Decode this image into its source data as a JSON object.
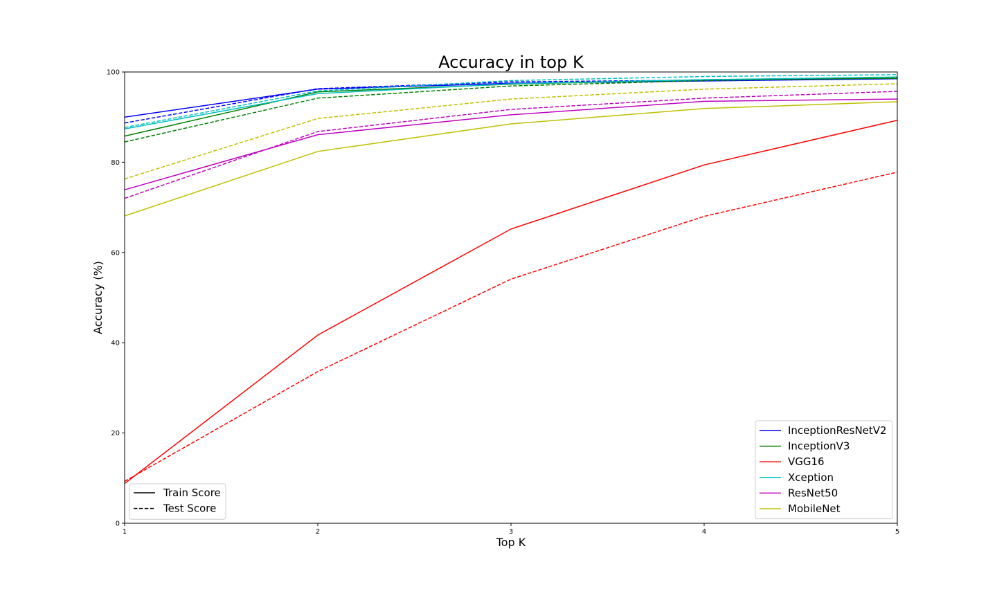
{
  "chart_data": {
    "type": "line",
    "title": "Accuracy in top K",
    "xlabel": "Top K",
    "ylabel": "Accuracy (%)",
    "x": [
      1,
      2,
      3,
      4,
      5
    ],
    "xlim": [
      1,
      5
    ],
    "ylim": [
      0,
      100
    ],
    "xticks": [
      "1",
      "2",
      "3",
      "4",
      "5"
    ],
    "yticks": [
      "0",
      "20",
      "40",
      "60",
      "80",
      "100"
    ],
    "grid": false,
    "legend_models_position": "lower right",
    "legend_styles_position": "lower left",
    "series": [
      {
        "name": "InceptionResNetV2",
        "color": "#0000ff",
        "train": [
          90.0,
          96.2,
          97.5,
          98.0,
          98.5
        ],
        "test": [
          88.7,
          96.3,
          97.8,
          98.2,
          98.6
        ]
      },
      {
        "name": "InceptionV3",
        "color": "#008000",
        "train": [
          85.8,
          95.6,
          97.3,
          98.3,
          98.6
        ],
        "test": [
          84.5,
          94.2,
          96.9,
          98.1,
          98.7
        ]
      },
      {
        "name": "VGG16",
        "color": "#ff0000",
        "train": [
          8.8,
          41.7,
          65.2,
          79.4,
          89.3
        ],
        "test": [
          9.3,
          33.6,
          54.1,
          68.0,
          77.8
        ]
      },
      {
        "name": "Xception",
        "color": "#00bfbf",
        "train": [
          87.4,
          95.2,
          97.4,
          98.3,
          98.9
        ],
        "test": [
          87.7,
          95.8,
          98.1,
          99.0,
          99.4
        ]
      },
      {
        "name": "ResNet50",
        "color": "#bf00bf",
        "train": [
          73.9,
          86.1,
          90.5,
          93.5,
          94.0
        ],
        "test": [
          72.0,
          86.8,
          91.7,
          94.2,
          95.7
        ]
      },
      {
        "name": "MobileNet",
        "color": "#bfbf00",
        "train": [
          68.1,
          82.4,
          88.5,
          91.9,
          93.4
        ],
        "test": [
          76.3,
          89.7,
          94.0,
          96.2,
          97.4
        ]
      }
    ],
    "style_legend": [
      {
        "label": "Train Score",
        "dash": "solid"
      },
      {
        "label": "Test Score",
        "dash": "dashed"
      }
    ]
  }
}
